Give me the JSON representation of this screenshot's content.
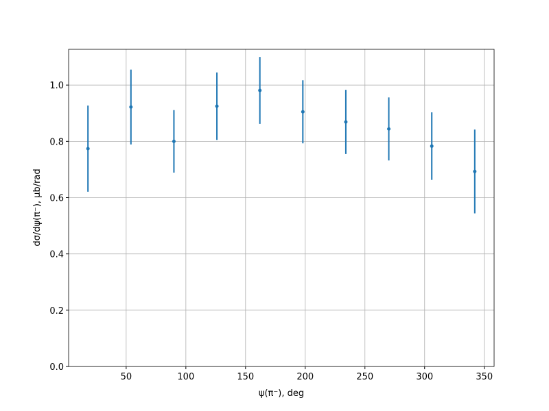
{
  "chart_data": {
    "type": "errorbar",
    "xlabel": "ψ(π⁻), deg",
    "ylabel": "dσ/dψ(π⁻), μb/rad",
    "x": [
      18,
      54,
      90,
      126,
      162,
      198,
      234,
      270,
      306,
      342
    ],
    "series": [
      {
        "color": "#1f77b4",
        "values": [
          0.774,
          0.922,
          0.8,
          0.925,
          0.981,
          0.905,
          0.869,
          0.844,
          0.783,
          0.693
        ],
        "errors": [
          0.153,
          0.133,
          0.111,
          0.12,
          0.119,
          0.112,
          0.114,
          0.112,
          0.12,
          0.149
        ]
      }
    ],
    "xlim": [
      1.8,
      358.2
    ],
    "xticks": [
      50,
      100,
      150,
      200,
      250,
      300,
      350
    ],
    "ylim": [
      0,
      1.127
    ],
    "yticks": [
      {
        "value": 0,
        "label": "0.0"
      },
      0.2,
      0.4,
      0.6,
      0.8,
      {
        "value": 1,
        "label": "1.0"
      }
    ],
    "grid": true
  }
}
